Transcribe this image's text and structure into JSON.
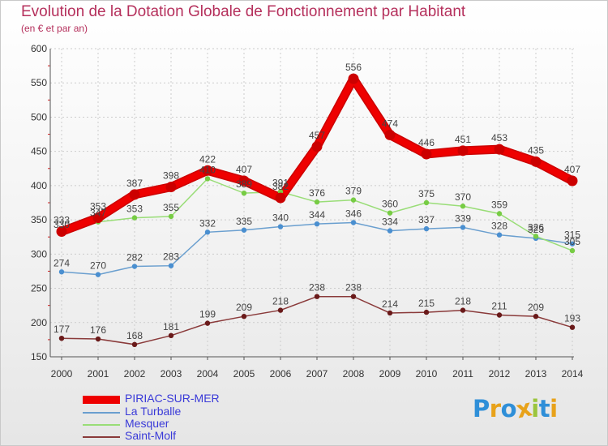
{
  "header": {
    "title": "Evolution de la Dotation Globale de Fonctionnement par Habitant",
    "subtitle": "(en € et par an)"
  },
  "logo": {
    "letters": [
      "P",
      "r",
      "o",
      "x",
      "i",
      "t",
      "i"
    ],
    "colors": [
      "#2f8fd8",
      "#e8a21a",
      "#2f8fd8",
      "#e8a21a",
      "#9bc53d",
      "#2f8fd8",
      "#e8a21a"
    ]
  },
  "colors": {
    "axis_text": "#333333",
    "grid": "#cccccc",
    "axis": "#555555",
    "tick_red": "#d22222",
    "label": "#444444"
  },
  "chart_data": {
    "type": "line",
    "title": "Evolution de la Dotation Globale de Fonctionnement par Habitant",
    "subtitle": "(en € et par an)",
    "xlabel": "",
    "ylabel": "",
    "x": [
      2000,
      2001,
      2002,
      2003,
      2004,
      2005,
      2006,
      2007,
      2008,
      2009,
      2010,
      2011,
      2012,
      2013,
      2014
    ],
    "ylim": [
      150,
      600
    ],
    "yticks": [
      150,
      200,
      250,
      300,
      350,
      400,
      450,
      500,
      550,
      600
    ],
    "grid": true,
    "legend_position": "bottom-left",
    "series": [
      {
        "name": "PIRIAC-SUR-MER",
        "color": "#ee0000",
        "edge_color": "#cc0000",
        "marker_color": "#cc0000",
        "thick": true,
        "values": [
          333,
          353,
          387,
          398,
          422,
          407,
          382,
          457,
          556,
          474,
          446,
          451,
          453,
          435,
          407
        ]
      },
      {
        "name": "La Turballe",
        "color": "#6a9fcf",
        "edge_color": "#6a9fcf",
        "marker_color": "#4a8fd0",
        "thick": false,
        "values": [
          274,
          270,
          282,
          283,
          332,
          335,
          340,
          344,
          346,
          334,
          337,
          339,
          328,
          323,
          315
        ]
      },
      {
        "name": "Mesquer",
        "color": "#99dd77",
        "edge_color": "#99dd77",
        "marker_color": "#77cc44",
        "thick": false,
        "values": [
          330,
          347,
          353,
          355,
          410,
          389,
          391,
          376,
          379,
          360,
          375,
          370,
          359,
          326,
          305
        ]
      },
      {
        "name": "Saint-Molf",
        "color": "#8a3a3a",
        "edge_color": "#8a3a3a",
        "marker_color": "#6a1a1a",
        "thick": false,
        "values": [
          177,
          176,
          168,
          181,
          199,
          209,
          218,
          238,
          238,
          214,
          215,
          218,
          211,
          209,
          193
        ]
      }
    ]
  }
}
